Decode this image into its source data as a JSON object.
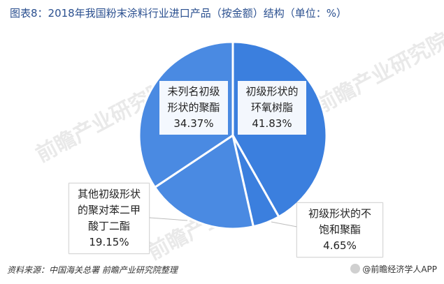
{
  "title": "图表8：2018年我国粉末涂料行业进口产品（按金额）结构（单位：%）",
  "chart_data": {
    "type": "pie",
    "slices": [
      {
        "name": "初级形状的\n环氧树脂",
        "value": 41.83,
        "color": "#3b7fde"
      },
      {
        "name": "初级形状的不\n饱和聚酯",
        "value": 4.65,
        "color": "#3b7fde"
      },
      {
        "name": "其他初级形状\n的聚对苯二甲\n酸丁二酯",
        "value": 19.15,
        "color": "#4a8ae2"
      },
      {
        "name": "未列名初级\n形状的聚酯",
        "value": 34.37,
        "color": "#4a8ae2"
      }
    ],
    "labels": [
      "41.83%",
      "4.65%",
      "19.15%",
      "34.37%"
    ]
  },
  "footer": {
    "source": "资料来源：中国海关总署 前瞻产业研究院整理",
    "brand": "@前瞻经济学人APP"
  },
  "watermark": "前瞻产业研究院"
}
